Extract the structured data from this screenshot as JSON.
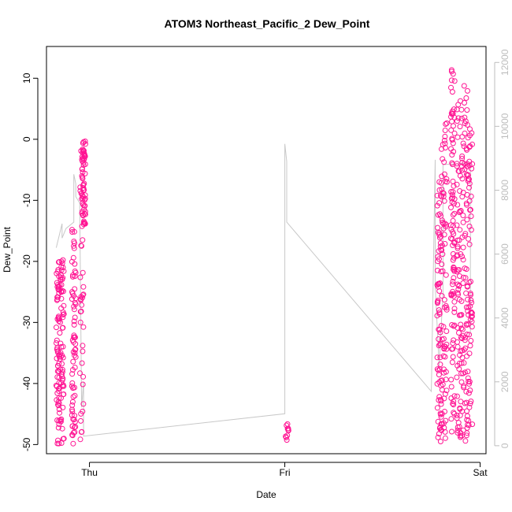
{
  "chart_data": {
    "type": "scatter",
    "title": "ATOM3 Northeast_Pacific_2 Dew_Point",
    "xlabel": "Date",
    "ylabel": "Dew_Point",
    "x_ticks": [
      "Thu",
      "Fri",
      "Sat"
    ],
    "y_left_ticks": [
      "10",
      "0",
      "-10",
      "-20",
      "-30",
      "-40",
      "-50"
    ],
    "y_right_ticks": [
      "0",
      "2000",
      "4000",
      "6000",
      "8000",
      "10000",
      "12000"
    ],
    "ylim_left": [
      -51.5,
      15.2
    ],
    "ylim_right": [
      -250,
      12500
    ],
    "xlim_days": [
      -0.22,
      2.03
    ],
    "grid": false,
    "colors": {
      "points": "#ff1493",
      "altitude_line": "#c8c8c8",
      "right_axis": "#bdbdbd"
    },
    "series": [
      {
        "axis": "left",
        "style": "points",
        "clusters": [
          {
            "x_range": [
              -0.17,
              -0.15
            ],
            "y_range": [
              -50,
              -20
            ],
            "density": 70
          },
          {
            "x_range": [
              -0.15,
              -0.13
            ],
            "y_range": [
              -50,
              -19.5
            ],
            "density": 60
          },
          {
            "x_range": [
              -0.09,
              -0.07
            ],
            "y_range": [
              -50,
              -14.5
            ],
            "density": 70
          },
          {
            "x_range": [
              -0.05,
              -0.03
            ],
            "y_range": [
              -49.5,
              0
            ],
            "density": 40
          },
          {
            "x_range": [
              -0.04,
              -0.02
            ],
            "y_range": [
              -14,
              -0.3
            ],
            "density": 60
          },
          {
            "x_range": [
              1.0,
              1.02
            ],
            "y_range": [
              -49.8,
              -46.5
            ],
            "density": 10
          },
          {
            "x_range": [
              1.78,
              1.8
            ],
            "y_range": [
              -50,
              -5.5
            ],
            "density": 70
          },
          {
            "x_range": [
              1.8,
              1.83
            ],
            "y_range": [
              -49,
              4.8
            ],
            "density": 80
          },
          {
            "x_range": [
              1.85,
              1.87
            ],
            "y_range": [
              -48,
              13
            ],
            "density": 90
          },
          {
            "x_range": [
              1.88,
              1.91
            ],
            "y_range": [
              -49,
              8
            ],
            "density": 90
          },
          {
            "x_range": [
              1.91,
              1.94
            ],
            "y_range": [
              -49.5,
              9
            ],
            "density": 80
          },
          {
            "x_range": [
              1.94,
              1.96
            ],
            "y_range": [
              -47,
              6
            ],
            "density": 50
          }
        ]
      },
      {
        "axis": "right",
        "style": "line",
        "x": [
          -0.17,
          -0.14,
          -0.14,
          -0.12,
          -0.08,
          -0.08,
          -0.07,
          -0.07,
          -0.05,
          -0.04,
          -0.03,
          -0.03,
          1.0,
          1.0,
          1.01,
          1.01,
          1.75,
          1.77,
          1.77,
          1.79,
          1.81,
          1.81,
          1.94,
          1.95,
          1.95
        ],
        "y": [
          6200,
          6950,
          6500,
          6800,
          7000,
          8500,
          8200,
          7800,
          7600,
          1200,
          2000,
          300,
          1000,
          9450,
          8900,
          7000,
          1700,
          8950,
          5000,
          2500,
          4800,
          8800,
          8850,
          8800,
          3500
        ]
      }
    ]
  }
}
